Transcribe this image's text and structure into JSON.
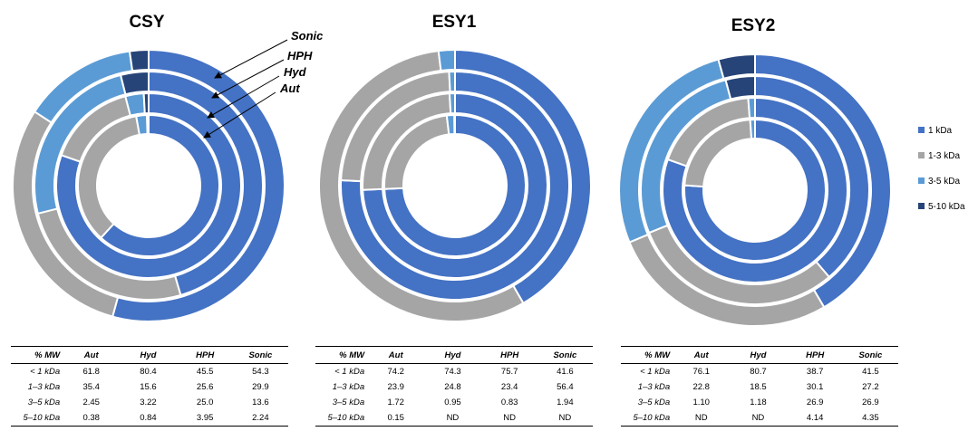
{
  "chart_data": [
    {
      "type": "donut",
      "title": "CSY",
      "ring_labels": [
        "Sonic",
        "HPH",
        "Hyd",
        "Aut"
      ],
      "rings_outer_to_inner": [
        {
          "name": "Sonic",
          "values": [
            54.3,
            29.9,
            13.6,
            2.24
          ]
        },
        {
          "name": "HPH",
          "values": [
            45.5,
            25.6,
            25.0,
            3.95
          ]
        },
        {
          "name": "Hyd",
          "values": [
            80.4,
            15.6,
            3.22,
            0.84
          ]
        },
        {
          "name": "Aut",
          "values": [
            61.8,
            35.4,
            2.45,
            0.38
          ]
        }
      ]
    },
    {
      "type": "donut",
      "title": "ESY1",
      "rings_outer_to_inner": [
        {
          "name": "Sonic",
          "values": [
            41.6,
            56.4,
            1.94,
            0
          ]
        },
        {
          "name": "HPH",
          "values": [
            75.7,
            23.4,
            0.83,
            0
          ]
        },
        {
          "name": "Hyd",
          "values": [
            74.3,
            24.8,
            0.95,
            0
          ]
        },
        {
          "name": "Aut",
          "values": [
            74.2,
            23.9,
            1.72,
            0.15
          ]
        }
      ]
    },
    {
      "type": "donut",
      "title": "ESY2",
      "rings_outer_to_inner": [
        {
          "name": "Sonic",
          "values": [
            41.5,
            27.2,
            26.9,
            4.35
          ]
        },
        {
          "name": "HPH",
          "values": [
            38.7,
            30.1,
            26.9,
            4.14
          ]
        },
        {
          "name": "Hyd",
          "values": [
            80.7,
            18.5,
            1.18,
            0
          ]
        },
        {
          "name": "Aut",
          "values": [
            76.1,
            22.8,
            1.1,
            0
          ]
        }
      ]
    }
  ],
  "legend": {
    "placement": "right",
    "entries": [
      {
        "label": "1 kDa",
        "color": "#4472C4"
      },
      {
        "label": "1-3 kDa",
        "color": "#A5A5A5"
      },
      {
        "label": "3-5 kDa",
        "color": "#5B9BD5"
      },
      {
        "label": "5-10 kDa",
        "color": "#264478"
      }
    ]
  },
  "tables": [
    {
      "headers": [
        "% MW",
        "Aut",
        "Hyd",
        "HPH",
        "Sonic"
      ],
      "rows": [
        [
          "< 1 kDa",
          "61.8",
          "80.4",
          "45.5",
          "54.3"
        ],
        [
          "1–3 kDa",
          "35.4",
          "15.6",
          "25.6",
          "29.9"
        ],
        [
          "3–5 kDa",
          "2.45",
          "3.22",
          "25.0",
          "13.6"
        ],
        [
          "5–10 kDa",
          "0.38",
          "0.84",
          "3.95",
          "2.24"
        ]
      ]
    },
    {
      "headers": [
        "% MW",
        "Aut",
        "Hyd",
        "HPH",
        "Sonic"
      ],
      "rows": [
        [
          "< 1 kDa",
          "74.2",
          "74.3",
          "75.7",
          "41.6"
        ],
        [
          "1–3 kDa",
          "23.9",
          "24.8",
          "23.4",
          "56.4"
        ],
        [
          "3–5 kDa",
          "1.72",
          "0.95",
          "0.83",
          "1.94"
        ],
        [
          "5–10 kDa",
          "0.15",
          "ND",
          "ND",
          "ND"
        ]
      ]
    },
    {
      "headers": [
        "% MW",
        "Aut",
        "Hyd",
        "HPH",
        "Sonic"
      ],
      "rows": [
        [
          "< 1 kDa",
          "76.1",
          "80.7",
          "38.7",
          "41.5"
        ],
        [
          "1–3 kDa",
          "22.8",
          "18.5",
          "30.1",
          "27.2"
        ],
        [
          "3–5 kDa",
          "1.10",
          "1.18",
          "26.9",
          "26.9"
        ],
        [
          "5–10 kDa",
          "ND",
          "ND",
          "4.14",
          "4.35"
        ]
      ]
    }
  ]
}
